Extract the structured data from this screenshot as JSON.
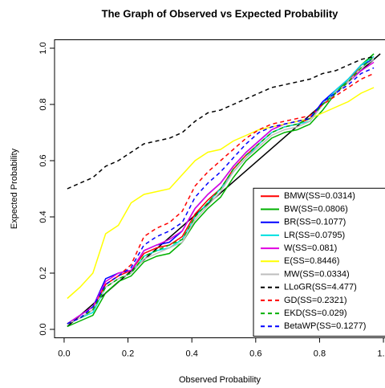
{
  "chart_data": {
    "type": "line",
    "title": "The Graph of Observed vs Expected Probability",
    "x_label": "Observed Probability",
    "y_label": "Expected Probability",
    "x": [
      0.01,
      0.05,
      0.09,
      0.13,
      0.17,
      0.21,
      0.25,
      0.29,
      0.33,
      0.37,
      0.41,
      0.45,
      0.49,
      0.53,
      0.57,
      0.61,
      0.65,
      0.69,
      0.73,
      0.77,
      0.81,
      0.85,
      0.89,
      0.93,
      0.97
    ],
    "reference_line": {
      "color": "#000000",
      "x": [
        0.01,
        0.99
      ],
      "y": [
        0.01,
        0.98
      ]
    },
    "series": [
      {
        "name": "BMW(SS=0.0314)",
        "color": "#ff0000",
        "dash": false,
        "values": [
          0.02,
          0.04,
          0.07,
          0.16,
          0.19,
          0.21,
          0.27,
          0.29,
          0.3,
          0.33,
          0.41,
          0.46,
          0.5,
          0.57,
          0.62,
          0.66,
          0.7,
          0.72,
          0.73,
          0.75,
          0.8,
          0.84,
          0.88,
          0.94,
          0.97
        ]
      },
      {
        "name": "BW(SS=0.0806)",
        "color": "#00b000",
        "dash": false,
        "values": [
          0.01,
          0.03,
          0.05,
          0.13,
          0.17,
          0.19,
          0.24,
          0.26,
          0.27,
          0.31,
          0.38,
          0.43,
          0.47,
          0.54,
          0.6,
          0.64,
          0.68,
          0.7,
          0.71,
          0.73,
          0.78,
          0.84,
          0.89,
          0.94,
          0.98
        ]
      },
      {
        "name": "BR(SS=0.1077)",
        "color": "#0000ff",
        "dash": false,
        "values": [
          0.02,
          0.05,
          0.08,
          0.18,
          0.2,
          0.21,
          0.28,
          0.3,
          0.31,
          0.35,
          0.43,
          0.48,
          0.52,
          0.58,
          0.63,
          0.67,
          0.71,
          0.73,
          0.74,
          0.75,
          0.81,
          0.85,
          0.89,
          0.94,
          0.96
        ]
      },
      {
        "name": "LR(SS=0.0795)",
        "color": "#00e0e0",
        "dash": false,
        "values": [
          0.02,
          0.04,
          0.06,
          0.15,
          0.18,
          0.2,
          0.26,
          0.28,
          0.29,
          0.32,
          0.4,
          0.45,
          0.5,
          0.56,
          0.61,
          0.66,
          0.7,
          0.72,
          0.73,
          0.74,
          0.8,
          0.85,
          0.89,
          0.94,
          0.97
        ]
      },
      {
        "name": "W(SS=0.081)",
        "color": "#e000e0",
        "dash": false,
        "values": [
          0.02,
          0.05,
          0.08,
          0.17,
          0.2,
          0.21,
          0.28,
          0.3,
          0.32,
          0.35,
          0.43,
          0.48,
          0.52,
          0.58,
          0.63,
          0.67,
          0.71,
          0.73,
          0.74,
          0.75,
          0.8,
          0.84,
          0.88,
          0.92,
          0.95
        ]
      },
      {
        "name": "E(SS=0.8446)",
        "color": "#ffff00",
        "dash": false,
        "values": [
          0.11,
          0.15,
          0.2,
          0.34,
          0.37,
          0.45,
          0.48,
          0.49,
          0.5,
          0.55,
          0.6,
          0.63,
          0.64,
          0.67,
          0.69,
          0.71,
          0.72,
          0.73,
          0.74,
          0.75,
          0.77,
          0.79,
          0.81,
          0.84,
          0.86
        ]
      },
      {
        "name": "MW(SS=0.0334)",
        "color": "#bebebe",
        "dash": false,
        "values": [
          0.02,
          0.04,
          0.07,
          0.15,
          0.18,
          0.2,
          0.25,
          0.27,
          0.29,
          0.31,
          0.39,
          0.44,
          0.49,
          0.56,
          0.61,
          0.65,
          0.69,
          0.71,
          0.72,
          0.74,
          0.8,
          0.84,
          0.88,
          0.93,
          0.96
        ]
      },
      {
        "name": "LLoGR(SS=4.477)",
        "color": "#000000",
        "dash": true,
        "values": [
          0.5,
          0.52,
          0.54,
          0.58,
          0.6,
          0.63,
          0.66,
          0.67,
          0.68,
          0.7,
          0.74,
          0.77,
          0.78,
          0.8,
          0.82,
          0.84,
          0.86,
          0.87,
          0.88,
          0.89,
          0.91,
          0.92,
          0.94,
          0.96,
          0.97
        ]
      },
      {
        "name": "GD(SS=0.2321)",
        "color": "#ff0000",
        "dash": true,
        "values": [
          0.02,
          0.04,
          0.07,
          0.16,
          0.19,
          0.23,
          0.33,
          0.36,
          0.38,
          0.42,
          0.51,
          0.56,
          0.6,
          0.64,
          0.68,
          0.71,
          0.73,
          0.74,
          0.75,
          0.76,
          0.8,
          0.83,
          0.86,
          0.89,
          0.91
        ]
      },
      {
        "name": "EKD(SS=0.029)",
        "color": "#00b000",
        "dash": true,
        "values": [
          0.02,
          0.04,
          0.07,
          0.15,
          0.18,
          0.2,
          0.26,
          0.28,
          0.3,
          0.32,
          0.4,
          0.45,
          0.5,
          0.57,
          0.62,
          0.66,
          0.7,
          0.72,
          0.73,
          0.75,
          0.8,
          0.84,
          0.88,
          0.93,
          0.97
        ]
      },
      {
        "name": "BetaWP(SS=0.1277)",
        "color": "#0000ff",
        "dash": true,
        "values": [
          0.02,
          0.04,
          0.08,
          0.16,
          0.19,
          0.22,
          0.3,
          0.33,
          0.35,
          0.38,
          0.47,
          0.52,
          0.56,
          0.61,
          0.66,
          0.7,
          0.72,
          0.73,
          0.74,
          0.75,
          0.81,
          0.84,
          0.87,
          0.91,
          0.93
        ]
      }
    ],
    "xlim": [
      -0.03,
      1.03
    ],
    "ylim": [
      -0.03,
      1.03
    ],
    "xticks": [
      {
        "value": 0,
        "label": "0.0"
      },
      0.2,
      0.4,
      0.6,
      0.8,
      {
        "value": 1,
        "label": "1.0"
      }
    ],
    "yticks": [
      {
        "value": 0,
        "label": "0.0"
      },
      0.2,
      0.4,
      0.6,
      0.8,
      {
        "value": 1,
        "label": "1.0"
      }
    ],
    "legend": "bottom-right"
  }
}
